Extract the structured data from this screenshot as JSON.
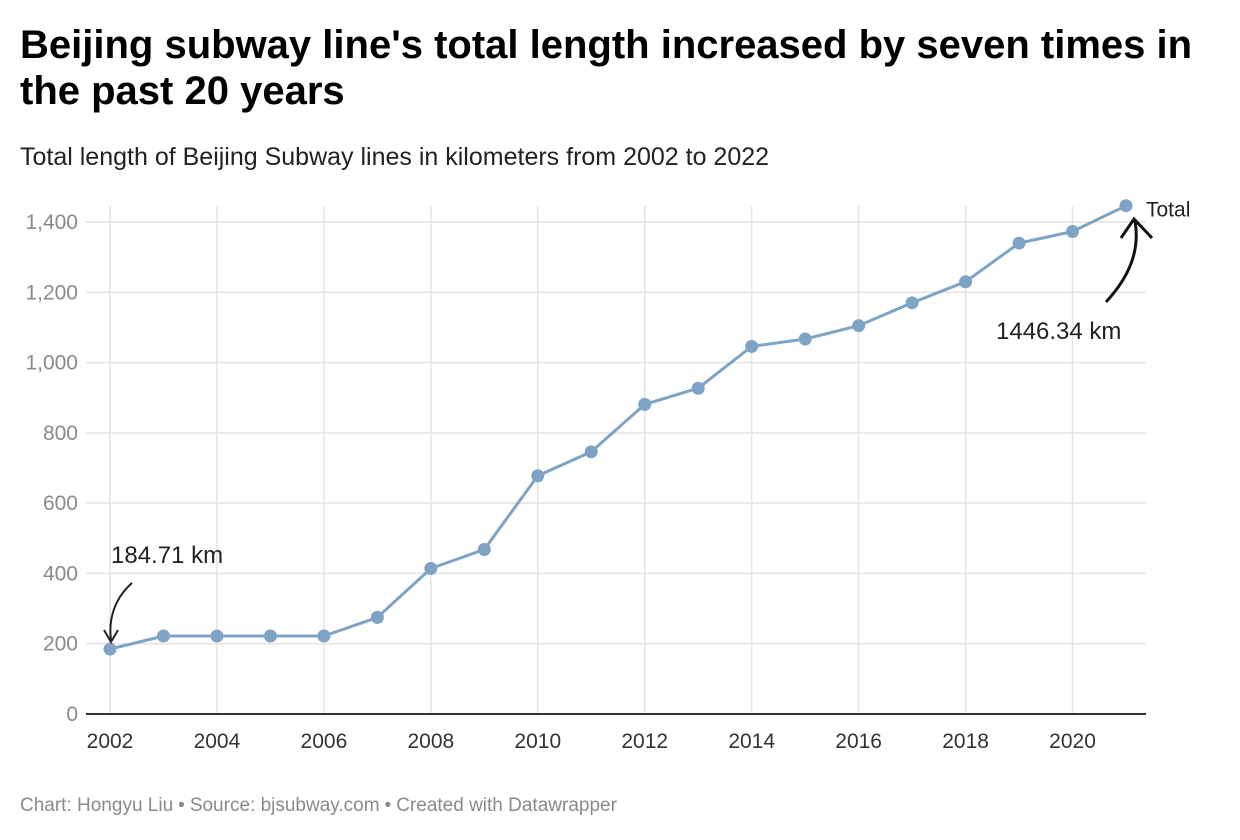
{
  "title": "Beijing subway line's total length increased by seven times in the past 20 years",
  "subtitle": "Total length of Beijing Subway lines in kilometers from 2002 to 2022",
  "footer": {
    "chart_credit": "Chart: Hongyu Liu",
    "source": "Source: bjsubway.com",
    "created_with": "Created with Datawrapper"
  },
  "colors": {
    "line": "#7ea3c4",
    "grid": "#e4e4e4",
    "axis": "#333333",
    "tick_text": "#8a8a8a"
  },
  "chart_data": {
    "type": "line",
    "title": "Beijing subway line's total length increased by seven times in the past 20 years",
    "subtitle": "Total length of Beijing Subway lines in kilometers from 2002 to 2022",
    "xlabel": "",
    "ylabel": "",
    "xlim": [
      2002,
      2021
    ],
    "ylim": [
      0,
      1400
    ],
    "x_ticks": [
      2002,
      2004,
      2006,
      2008,
      2010,
      2012,
      2014,
      2016,
      2018,
      2020
    ],
    "x_tick_labels": [
      "2002",
      "2004",
      "2006",
      "2008",
      "2010",
      "2012",
      "2014",
      "2016",
      "2018",
      "2020"
    ],
    "y_ticks": [
      0,
      200,
      400,
      600,
      800,
      1000,
      1200,
      1400
    ],
    "y_tick_labels": [
      "0",
      "200",
      "400",
      "600",
      "800",
      "1,000",
      "1,200",
      "1,400"
    ],
    "grid": true,
    "x": [
      2002,
      2003,
      2004,
      2005,
      2006,
      2007,
      2008,
      2009,
      2010,
      2011,
      2012,
      2013,
      2014,
      2015,
      2016,
      2017,
      2018,
      2019,
      2020,
      2021
    ],
    "series": [
      {
        "name": "Total",
        "values": [
          184.71,
          222,
          222,
          222,
          222,
          275,
          414,
          468,
          678,
          746,
          881,
          927,
          1046,
          1067,
          1105,
          1170,
          1230,
          1340,
          1373,
          1446.34
        ]
      }
    ],
    "annotations": [
      {
        "text": "184.71 km",
        "x": 2002,
        "y": 184.71
      },
      {
        "text": "1446.34 km",
        "x": 2021,
        "y": 1446.34
      }
    ]
  }
}
